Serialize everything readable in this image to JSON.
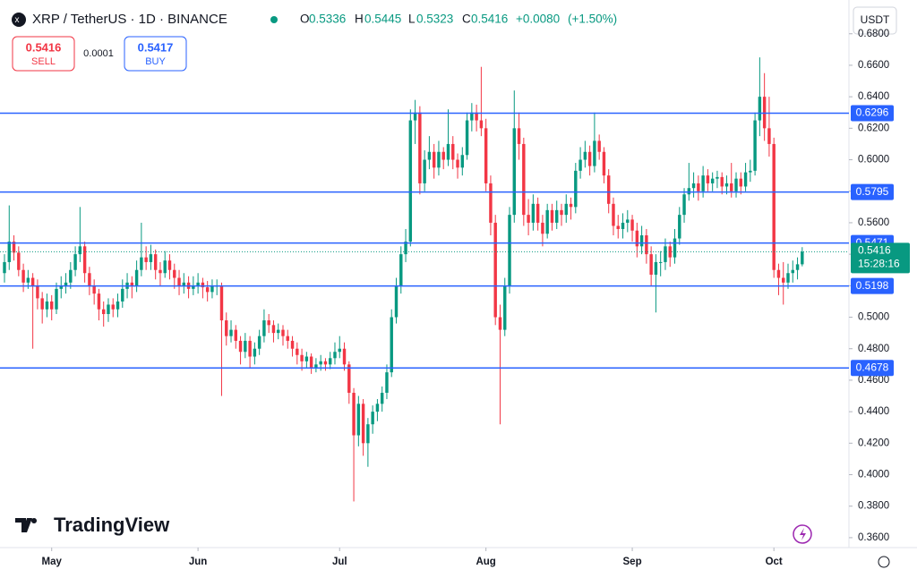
{
  "header": {
    "symbol": "XRP / TetherUS · 1D · BINANCE",
    "o": "O",
    "open": "0.5336",
    "h": "H",
    "high": "0.5445",
    "l": "L",
    "low": "0.5323",
    "c": "C",
    "close": "0.5416",
    "change": "+0.0080",
    "change_pct": "(+1.50%)"
  },
  "trade": {
    "sell_price": "0.5416",
    "sell": "SELL",
    "spread": "0.0001",
    "buy_price": "0.5417",
    "buy": "BUY"
  },
  "currency": "USDT",
  "brand": "TradingView",
  "countdown": "15:28:16",
  "chart_data": {
    "type": "candlestick",
    "up_color": "#089981",
    "down_color": "#f23645",
    "level_color": "#2962ff",
    "grid": false,
    "ylim": [
      0.3537,
      0.6844
    ],
    "xlim": [
      -0.95,
      178.9
    ],
    "yticks": [
      {
        "value": 0.36,
        "label": "0.3600"
      },
      {
        "value": 0.38,
        "label": "0.3800"
      },
      {
        "value": 0.4,
        "label": "0.4000"
      },
      {
        "value": 0.42,
        "label": "0.4200"
      },
      {
        "value": 0.44,
        "label": "0.4400"
      },
      {
        "value": 0.46,
        "label": "0.4600"
      },
      {
        "value": 0.48,
        "label": "0.4800"
      },
      {
        "value": 0.5,
        "label": "0.5000"
      },
      {
        "value": 0.52,
        "label": "0.5200"
      },
      {
        "value": 0.54,
        "label": "0.5400"
      },
      {
        "value": 0.56,
        "label": "0.5600"
      },
      {
        "value": 0.58,
        "label": "0.5800"
      },
      {
        "value": 0.6,
        "label": "0.6000"
      },
      {
        "value": 0.62,
        "label": "0.6200"
      },
      {
        "value": 0.64,
        "label": "0.6400"
      },
      {
        "value": 0.66,
        "label": "0.6600"
      },
      {
        "value": 0.68,
        "label": "0.6800"
      }
    ],
    "xticks": [
      {
        "value": 10,
        "label": "May"
      },
      {
        "value": 41,
        "label": "Jun"
      },
      {
        "value": 71,
        "label": "Jul"
      },
      {
        "value": 102,
        "label": "Aug"
      },
      {
        "value": 133,
        "label": "Sep"
      },
      {
        "value": 163,
        "label": "Oct"
      }
    ],
    "levels": [
      0.6296,
      0.5795,
      0.5471,
      0.5198,
      0.4678
    ],
    "candles": [
      [
        0.528,
        0.54,
        0.522,
        0.535
      ],
      [
        0.535,
        0.571,
        0.53,
        0.548
      ],
      [
        0.548,
        0.552,
        0.536,
        0.541
      ],
      [
        0.541,
        0.545,
        0.526,
        0.53
      ],
      [
        0.53,
        0.534,
        0.516,
        0.522
      ],
      [
        0.522,
        0.53,
        0.518,
        0.525
      ],
      [
        0.525,
        0.528,
        0.48,
        0.52
      ],
      [
        0.52,
        0.524,
        0.505,
        0.512
      ],
      [
        0.512,
        0.516,
        0.496,
        0.505
      ],
      [
        0.505,
        0.515,
        0.5,
        0.51
      ],
      [
        0.51,
        0.514,
        0.498,
        0.505
      ],
      [
        0.505,
        0.522,
        0.502,
        0.518
      ],
      [
        0.518,
        0.526,
        0.512,
        0.52
      ],
      [
        0.52,
        0.528,
        0.515,
        0.522
      ],
      [
        0.522,
        0.535,
        0.518,
        0.53
      ],
      [
        0.53,
        0.545,
        0.526,
        0.54
      ],
      [
        0.54,
        0.57,
        0.535,
        0.545
      ],
      [
        0.545,
        0.548,
        0.522,
        0.528
      ],
      [
        0.528,
        0.532,
        0.514,
        0.52
      ],
      [
        0.52,
        0.524,
        0.508,
        0.515
      ],
      [
        0.515,
        0.518,
        0.498,
        0.505
      ],
      [
        0.505,
        0.51,
        0.494,
        0.502
      ],
      [
        0.502,
        0.512,
        0.497,
        0.508
      ],
      [
        0.508,
        0.512,
        0.5,
        0.505
      ],
      [
        0.505,
        0.515,
        0.5,
        0.51
      ],
      [
        0.51,
        0.524,
        0.506,
        0.518
      ],
      [
        0.518,
        0.528,
        0.512,
        0.522
      ],
      [
        0.522,
        0.526,
        0.512,
        0.52
      ],
      [
        0.52,
        0.536,
        0.516,
        0.53
      ],
      [
        0.53,
        0.56,
        0.526,
        0.538
      ],
      [
        0.538,
        0.545,
        0.53,
        0.535
      ],
      [
        0.535,
        0.546,
        0.53,
        0.54
      ],
      [
        0.54,
        0.543,
        0.524,
        0.53
      ],
      [
        0.53,
        0.535,
        0.52,
        0.528
      ],
      [
        0.528,
        0.542,
        0.525,
        0.536
      ],
      [
        0.536,
        0.54,
        0.524,
        0.53
      ],
      [
        0.53,
        0.534,
        0.518,
        0.525
      ],
      [
        0.525,
        0.53,
        0.514,
        0.52
      ],
      [
        0.52,
        0.528,
        0.515,
        0.522
      ],
      [
        0.522,
        0.526,
        0.512,
        0.518
      ],
      [
        0.518,
        0.526,
        0.514,
        0.52
      ],
      [
        0.52,
        0.528,
        0.515,
        0.522
      ],
      [
        0.522,
        0.525,
        0.512,
        0.519
      ],
      [
        0.519,
        0.523,
        0.51,
        0.516
      ],
      [
        0.516,
        0.524,
        0.512,
        0.52
      ],
      [
        0.52,
        0.524,
        0.514,
        0.52
      ],
      [
        0.52,
        0.522,
        0.45,
        0.498
      ],
      [
        0.498,
        0.503,
        0.482,
        0.488
      ],
      [
        0.488,
        0.498,
        0.484,
        0.492
      ],
      [
        0.492,
        0.495,
        0.48,
        0.485
      ],
      [
        0.485,
        0.488,
        0.47,
        0.478
      ],
      [
        0.478,
        0.49,
        0.474,
        0.485
      ],
      [
        0.485,
        0.488,
        0.468,
        0.475
      ],
      [
        0.475,
        0.484,
        0.47,
        0.48
      ],
      [
        0.48,
        0.492,
        0.476,
        0.488
      ],
      [
        0.488,
        0.505,
        0.484,
        0.498
      ],
      [
        0.498,
        0.502,
        0.49,
        0.495
      ],
      [
        0.495,
        0.498,
        0.484,
        0.49
      ],
      [
        0.49,
        0.496,
        0.486,
        0.492
      ],
      [
        0.492,
        0.495,
        0.482,
        0.488
      ],
      [
        0.488,
        0.492,
        0.48,
        0.485
      ],
      [
        0.485,
        0.488,
        0.475,
        0.48
      ],
      [
        0.48,
        0.484,
        0.47,
        0.476
      ],
      [
        0.476,
        0.48,
        0.466,
        0.472
      ],
      [
        0.472,
        0.478,
        0.468,
        0.475
      ],
      [
        0.475,
        0.477,
        0.464,
        0.468
      ],
      [
        0.468,
        0.474,
        0.465,
        0.47
      ],
      [
        0.47,
        0.476,
        0.466,
        0.472
      ],
      [
        0.472,
        0.474,
        0.466,
        0.47
      ],
      [
        0.47,
        0.478,
        0.467,
        0.474
      ],
      [
        0.474,
        0.484,
        0.47,
        0.478
      ],
      [
        0.478,
        0.488,
        0.474,
        0.48
      ],
      [
        0.48,
        0.484,
        0.466,
        0.47
      ],
      [
        0.47,
        0.472,
        0.445,
        0.452
      ],
      [
        0.452,
        0.455,
        0.383,
        0.425
      ],
      [
        0.425,
        0.45,
        0.418,
        0.445
      ],
      [
        0.445,
        0.448,
        0.412,
        0.42
      ],
      [
        0.42,
        0.436,
        0.405,
        0.432
      ],
      [
        0.432,
        0.444,
        0.426,
        0.44
      ],
      [
        0.44,
        0.448,
        0.434,
        0.445
      ],
      [
        0.445,
        0.456,
        0.44,
        0.452
      ],
      [
        0.452,
        0.47,
        0.448,
        0.465
      ],
      [
        0.465,
        0.505,
        0.462,
        0.5
      ],
      [
        0.5,
        0.525,
        0.496,
        0.52
      ],
      [
        0.52,
        0.545,
        0.515,
        0.54
      ],
      [
        0.54,
        0.556,
        0.535,
        0.548
      ],
      [
        0.548,
        0.632,
        0.545,
        0.625
      ],
      [
        0.625,
        0.638,
        0.61,
        0.63
      ],
      [
        0.63,
        0.634,
        0.578,
        0.585
      ],
      [
        0.585,
        0.606,
        0.58,
        0.6
      ],
      [
        0.6,
        0.615,
        0.594,
        0.605
      ],
      [
        0.605,
        0.61,
        0.588,
        0.595
      ],
      [
        0.595,
        0.612,
        0.59,
        0.605
      ],
      [
        0.605,
        0.608,
        0.594,
        0.6
      ],
      [
        0.6,
        0.632,
        0.596,
        0.61
      ],
      [
        0.61,
        0.615,
        0.594,
        0.6
      ],
      [
        0.6,
        0.604,
        0.588,
        0.595
      ],
      [
        0.595,
        0.608,
        0.59,
        0.603
      ],
      [
        0.603,
        0.63,
        0.6,
        0.625
      ],
      [
        0.625,
        0.636,
        0.618,
        0.63
      ],
      [
        0.63,
        0.635,
        0.618,
        0.625
      ],
      [
        0.625,
        0.659,
        0.615,
        0.62
      ],
      [
        0.62,
        0.626,
        0.58,
        0.585
      ],
      [
        0.585,
        0.59,
        0.552,
        0.56
      ],
      [
        0.56,
        0.565,
        0.495,
        0.5
      ],
      [
        0.5,
        0.508,
        0.432,
        0.492
      ],
      [
        0.492,
        0.525,
        0.488,
        0.52
      ],
      [
        0.52,
        0.57,
        0.515,
        0.565
      ],
      [
        0.565,
        0.644,
        0.56,
        0.62
      ],
      [
        0.62,
        0.63,
        0.6,
        0.61
      ],
      [
        0.61,
        0.614,
        0.558,
        0.565
      ],
      [
        0.565,
        0.575,
        0.552,
        0.56
      ],
      [
        0.56,
        0.578,
        0.555,
        0.572
      ],
      [
        0.572,
        0.576,
        0.555,
        0.56
      ],
      [
        0.56,
        0.565,
        0.545,
        0.553
      ],
      [
        0.553,
        0.572,
        0.55,
        0.568
      ],
      [
        0.568,
        0.572,
        0.555,
        0.56
      ],
      [
        0.56,
        0.574,
        0.556,
        0.568
      ],
      [
        0.568,
        0.572,
        0.558,
        0.565
      ],
      [
        0.565,
        0.578,
        0.56,
        0.572
      ],
      [
        0.572,
        0.576,
        0.562,
        0.57
      ],
      [
        0.57,
        0.598,
        0.566,
        0.593
      ],
      [
        0.593,
        0.608,
        0.588,
        0.6
      ],
      [
        0.6,
        0.612,
        0.595,
        0.605
      ],
      [
        0.605,
        0.609,
        0.59,
        0.596
      ],
      [
        0.596,
        0.63,
        0.592,
        0.612
      ],
      [
        0.612,
        0.616,
        0.6,
        0.605
      ],
      [
        0.605,
        0.608,
        0.585,
        0.59
      ],
      [
        0.59,
        0.594,
        0.566,
        0.572
      ],
      [
        0.572,
        0.576,
        0.552,
        0.558
      ],
      [
        0.558,
        0.565,
        0.55,
        0.556
      ],
      [
        0.556,
        0.566,
        0.55,
        0.56
      ],
      [
        0.56,
        0.568,
        0.554,
        0.562
      ],
      [
        0.562,
        0.565,
        0.548,
        0.555
      ],
      [
        0.555,
        0.56,
        0.538,
        0.545
      ],
      [
        0.545,
        0.558,
        0.54,
        0.552
      ],
      [
        0.552,
        0.556,
        0.534,
        0.54
      ],
      [
        0.54,
        0.545,
        0.52,
        0.527
      ],
      [
        0.527,
        0.54,
        0.503,
        0.535
      ],
      [
        0.535,
        0.542,
        0.526,
        0.535
      ],
      [
        0.535,
        0.55,
        0.53,
        0.545
      ],
      [
        0.545,
        0.548,
        0.532,
        0.538
      ],
      [
        0.538,
        0.556,
        0.534,
        0.55
      ],
      [
        0.55,
        0.57,
        0.546,
        0.565
      ],
      [
        0.565,
        0.582,
        0.56,
        0.578
      ],
      [
        0.578,
        0.598,
        0.574,
        0.582
      ],
      [
        0.582,
        0.592,
        0.576,
        0.585
      ],
      [
        0.585,
        0.59,
        0.574,
        0.58
      ],
      [
        0.58,
        0.596,
        0.576,
        0.59
      ],
      [
        0.59,
        0.594,
        0.58,
        0.585
      ],
      [
        0.585,
        0.592,
        0.58,
        0.588
      ],
      [
        0.588,
        0.593,
        0.582,
        0.589
      ],
      [
        0.589,
        0.592,
        0.578,
        0.583
      ],
      [
        0.583,
        0.59,
        0.578,
        0.585
      ],
      [
        0.585,
        0.598,
        0.576,
        0.58
      ],
      [
        0.58,
        0.592,
        0.576,
        0.588
      ],
      [
        0.588,
        0.592,
        0.578,
        0.583
      ],
      [
        0.583,
        0.598,
        0.58,
        0.592
      ],
      [
        0.592,
        0.6,
        0.586,
        0.593
      ],
      [
        0.593,
        0.63,
        0.59,
        0.625
      ],
      [
        0.625,
        0.665,
        0.615,
        0.64
      ],
      [
        0.64,
        0.655,
        0.612,
        0.62
      ],
      [
        0.62,
        0.64,
        0.602,
        0.61
      ],
      [
        0.61,
        0.614,
        0.525,
        0.53
      ],
      [
        0.53,
        0.534,
        0.514,
        0.525
      ],
      [
        0.525,
        0.535,
        0.508,
        0.522
      ],
      [
        0.522,
        0.534,
        0.518,
        0.528
      ],
      [
        0.528,
        0.536,
        0.522,
        0.53
      ],
      [
        0.53,
        0.538,
        0.524,
        0.5336
      ],
      [
        0.5336,
        0.5445,
        0.5323,
        0.5416
      ]
    ]
  }
}
